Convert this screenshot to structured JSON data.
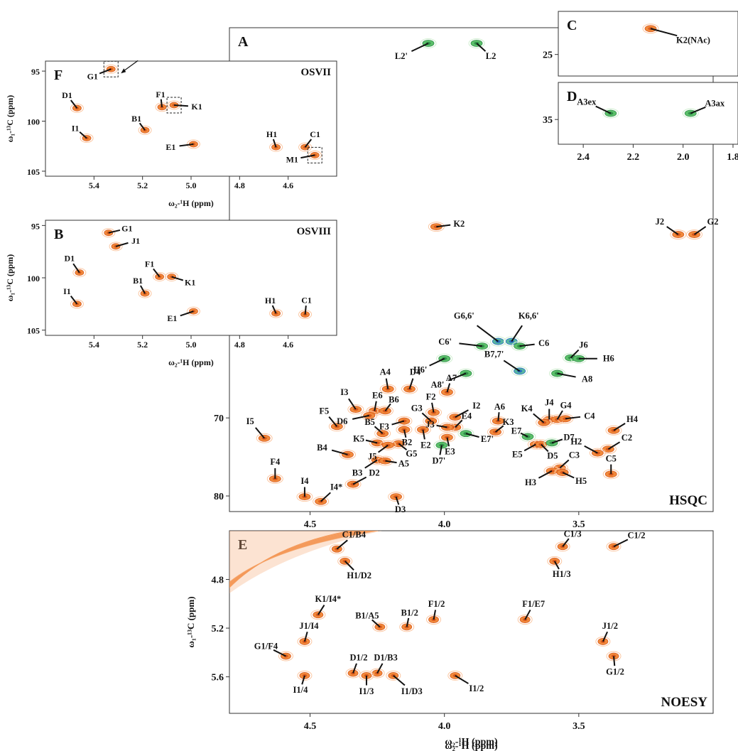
{
  "chart_data": [
    {
      "id": "A",
      "panel_letter": "A",
      "type": "scatter",
      "subtype": "2D NMR HSQC contour spectrum",
      "title": "HSQC",
      "x_axis_label": "ω₂-¹H (ppm)",
      "xlim": [
        4.8,
        3.0
      ],
      "x_ticks": [
        4.5,
        4.0,
        3.5
      ],
      "ylim": [
        20,
        82
      ],
      "y_ticks": [
        70,
        80
      ],
      "grid": false,
      "peak_colors": {
        "positive": "#f07a28",
        "negative": "#3fae5a",
        "overlap": "#2a6fc0"
      },
      "peaks": [
        {
          "label": "L2'",
          "x": 4.06,
          "y": 22.0,
          "phase": "neg"
        },
        {
          "label": "L2",
          "x": 3.88,
          "y": 22.0,
          "phase": "neg"
        },
        {
          "label": "K2",
          "x": 4.03,
          "y": 45.5,
          "phase": "pos"
        },
        {
          "label": "J2",
          "x": 3.13,
          "y": 46.5,
          "phase": "pos"
        },
        {
          "label": "G2",
          "x": 3.07,
          "y": 46.5,
          "phase": "pos"
        },
        {
          "label": "G6,6'",
          "x": 3.8,
          "y": 60.2,
          "phase": "mix"
        },
        {
          "label": "K6,6'",
          "x": 3.75,
          "y": 60.2,
          "phase": "mix"
        },
        {
          "label": "C6'",
          "x": 3.86,
          "y": 60.8,
          "phase": "neg"
        },
        {
          "label": "C6",
          "x": 3.72,
          "y": 60.8,
          "phase": "neg"
        },
        {
          "label": "J6",
          "x": 3.53,
          "y": 62.3,
          "phase": "neg"
        },
        {
          "label": "H6",
          "x": 3.5,
          "y": 62.4,
          "phase": "neg"
        },
        {
          "label": "H6'",
          "x": 4.0,
          "y": 62.4,
          "phase": "neg"
        },
        {
          "label": "B7,7'",
          "x": 3.72,
          "y": 64.0,
          "phase": "mix"
        },
        {
          "label": "A8'",
          "x": 3.92,
          "y": 64.3,
          "phase": "neg"
        },
        {
          "label": "A8",
          "x": 3.58,
          "y": 64.3,
          "phase": "neg"
        },
        {
          "label": "A4",
          "x": 4.21,
          "y": 66.3,
          "phase": "pos"
        },
        {
          "label": "D4",
          "x": 4.13,
          "y": 66.3,
          "phase": "pos"
        },
        {
          "label": "A7",
          "x": 3.99,
          "y": 66.7,
          "phase": "pos"
        },
        {
          "label": "I3",
          "x": 4.33,
          "y": 68.9,
          "phase": "pos"
        },
        {
          "label": "E6",
          "x": 4.26,
          "y": 69.1,
          "phase": "pos"
        },
        {
          "label": "B6",
          "x": 4.22,
          "y": 69.1,
          "phase": "pos"
        },
        {
          "label": "D6",
          "x": 4.28,
          "y": 69.7,
          "phase": "pos"
        },
        {
          "label": "F2",
          "x": 4.04,
          "y": 69.3,
          "phase": "pos"
        },
        {
          "label": "I2",
          "x": 3.96,
          "y": 69.9,
          "phase": "pos"
        },
        {
          "label": "F3",
          "x": 4.15,
          "y": 70.4,
          "phase": "pos"
        },
        {
          "label": "G3",
          "x": 4.05,
          "y": 70.4,
          "phase": "pos"
        },
        {
          "label": "A6",
          "x": 3.8,
          "y": 70.4,
          "phase": "pos"
        },
        {
          "label": "J4",
          "x": 3.61,
          "y": 70.2,
          "phase": "pos"
        },
        {
          "label": "G4",
          "x": 3.58,
          "y": 70.2,
          "phase": "pos"
        },
        {
          "label": "K4",
          "x": 3.63,
          "y": 70.6,
          "phase": "pos"
        },
        {
          "label": "C4",
          "x": 3.55,
          "y": 70.1,
          "phase": "pos"
        },
        {
          "label": "E4",
          "x": 3.96,
          "y": 71.2,
          "phase": "pos"
        },
        {
          "label": "J3",
          "x": 3.99,
          "y": 71.2,
          "phase": "pos"
        },
        {
          "label": "F5",
          "x": 4.4,
          "y": 71.1,
          "phase": "pos"
        },
        {
          "label": "B5",
          "x": 4.23,
          "y": 72.0,
          "phase": "pos"
        },
        {
          "label": "B2",
          "x": 4.15,
          "y": 71.5,
          "phase": "pos"
        },
        {
          "label": "E2",
          "x": 4.08,
          "y": 71.5,
          "phase": "pos"
        },
        {
          "label": "K3",
          "x": 3.81,
          "y": 71.8,
          "phase": "pos"
        },
        {
          "label": "E3",
          "x": 3.99,
          "y": 72.5,
          "phase": "pos"
        },
        {
          "label": "E7'",
          "x": 3.92,
          "y": 72.0,
          "phase": "neg"
        },
        {
          "label": "E7",
          "x": 3.69,
          "y": 72.4,
          "phase": "neg"
        },
        {
          "label": "I5",
          "x": 4.67,
          "y": 72.6,
          "phase": "pos"
        },
        {
          "label": "K5",
          "x": 4.25,
          "y": 73.2,
          "phase": "pos"
        },
        {
          "label": "G5",
          "x": 4.17,
          "y": 73.3,
          "phase": "pos"
        },
        {
          "label": "J5",
          "x": 4.21,
          "y": 73.5,
          "phase": "pos"
        },
        {
          "label": "D7'",
          "x": 4.01,
          "y": 73.5,
          "phase": "neg"
        },
        {
          "label": "E5",
          "x": 3.66,
          "y": 73.4,
          "phase": "pos"
        },
        {
          "label": "D5",
          "x": 3.64,
          "y": 73.4,
          "phase": "pos"
        },
        {
          "label": "D7",
          "x": 3.6,
          "y": 73.2,
          "phase": "neg"
        },
        {
          "label": "H4",
          "x": 3.37,
          "y": 71.6,
          "phase": "pos"
        },
        {
          "label": "C2",
          "x": 3.39,
          "y": 74.0,
          "phase": "pos"
        },
        {
          "label": "H2",
          "x": 3.43,
          "y": 74.5,
          "phase": "pos"
        },
        {
          "label": "B4",
          "x": 4.36,
          "y": 74.7,
          "phase": "pos"
        },
        {
          "label": "B3",
          "x": 4.25,
          "y": 75.4,
          "phase": "pos"
        },
        {
          "label": "A5",
          "x": 4.22,
          "y": 75.5,
          "phase": "pos"
        },
        {
          "label": "C3",
          "x": 3.57,
          "y": 76.4,
          "phase": "pos"
        },
        {
          "label": "H3",
          "x": 3.6,
          "y": 76.8,
          "phase": "pos"
        },
        {
          "label": "H5",
          "x": 3.56,
          "y": 77.0,
          "phase": "pos"
        },
        {
          "label": "C5",
          "x": 3.38,
          "y": 77.2,
          "phase": "pos"
        },
        {
          "label": "F4",
          "x": 4.63,
          "y": 77.8,
          "phase": "pos"
        },
        {
          "label": "D2",
          "x": 4.34,
          "y": 78.5,
          "phase": "pos"
        },
        {
          "label": "D3",
          "x": 4.18,
          "y": 80.1,
          "phase": "pos"
        },
        {
          "label": "I4",
          "x": 4.52,
          "y": 80.1,
          "phase": "pos"
        },
        {
          "label": "I4*",
          "x": 4.46,
          "y": 80.7,
          "phase": "pos"
        }
      ]
    },
    {
      "id": "C",
      "panel_letter": "C",
      "type": "scatter",
      "subtype": "HSQC inset",
      "xlim": [
        2.5,
        1.78
      ],
      "ylim": [
        21,
        27
      ],
      "y_ticks": [
        25
      ],
      "peaks": [
        {
          "label": "K2(NAc)",
          "x": 2.13,
          "y": 22.6,
          "phase": "pos"
        }
      ]
    },
    {
      "id": "D",
      "panel_letter": "D",
      "type": "scatter",
      "subtype": "HSQC inset",
      "xlim": [
        2.5,
        1.78
      ],
      "x_ticks": [
        2.4,
        2.2,
        2.0,
        1.8
      ],
      "ylim": [
        32,
        37
      ],
      "y_ticks": [
        35
      ],
      "peaks": [
        {
          "label": "A3ex",
          "x": 2.29,
          "y": 34.5,
          "phase": "neg"
        },
        {
          "label": "A3ax",
          "x": 1.97,
          "y": 34.5,
          "phase": "neg"
        }
      ]
    },
    {
      "id": "F",
      "panel_letter": "F",
      "type": "scatter",
      "subtype": "HSQC anomeric region",
      "title": "OSVII",
      "x_axis_label": "ω₂-¹H (ppm)",
      "y_axis_label": "ω₁-¹³C (ppm)",
      "xlim": [
        5.6,
        4.4
      ],
      "x_ticks": [
        5.4,
        5.2,
        5.0,
        4.8,
        4.6
      ],
      "ylim": [
        94,
        105.5
      ],
      "y_ticks": [
        95,
        100,
        105
      ],
      "peaks": [
        {
          "label": "G1",
          "x": 5.33,
          "y": 94.8,
          "phase": "pos",
          "boxed": true
        },
        {
          "label": "D1",
          "x": 5.47,
          "y": 98.7,
          "phase": "pos"
        },
        {
          "label": "F1",
          "x": 5.12,
          "y": 98.6,
          "phase": "pos"
        },
        {
          "label": "K1",
          "x": 5.07,
          "y": 98.4,
          "phase": "pos",
          "boxed": true
        },
        {
          "label": "B1",
          "x": 5.19,
          "y": 100.9,
          "phase": "pos"
        },
        {
          "label": "I1",
          "x": 5.43,
          "y": 101.7,
          "phase": "pos"
        },
        {
          "label": "E1",
          "x": 4.99,
          "y": 102.3,
          "phase": "pos"
        },
        {
          "label": "H1",
          "x": 4.65,
          "y": 102.6,
          "phase": "pos"
        },
        {
          "label": "C1",
          "x": 4.53,
          "y": 102.6,
          "phase": "pos"
        },
        {
          "label": "M1",
          "x": 4.49,
          "y": 103.4,
          "phase": "pos",
          "boxed": true
        }
      ]
    },
    {
      "id": "B",
      "panel_letter": "B",
      "type": "scatter",
      "subtype": "HSQC anomeric region",
      "title": "OSVIII",
      "x_axis_label": "ω₂-¹H (ppm)",
      "y_axis_label": "ω₁-¹³C (ppm)",
      "xlim": [
        5.6,
        4.4
      ],
      "x_ticks": [
        5.4,
        5.2,
        5.0,
        4.8,
        4.6
      ],
      "ylim": [
        94.5,
        105.5
      ],
      "y_ticks": [
        95,
        100,
        105
      ],
      "peaks": [
        {
          "label": "G1",
          "x": 5.34,
          "y": 95.7,
          "phase": "pos"
        },
        {
          "label": "J1",
          "x": 5.31,
          "y": 97.0,
          "phase": "pos"
        },
        {
          "label": "D1",
          "x": 5.46,
          "y": 99.5,
          "phase": "pos"
        },
        {
          "label": "F1",
          "x": 5.13,
          "y": 99.9,
          "phase": "pos"
        },
        {
          "label": "K1",
          "x": 5.08,
          "y": 99.9,
          "phase": "pos"
        },
        {
          "label": "B1",
          "x": 5.19,
          "y": 101.5,
          "phase": "pos"
        },
        {
          "label": "I1",
          "x": 5.47,
          "y": 102.5,
          "phase": "pos"
        },
        {
          "label": "E1",
          "x": 4.99,
          "y": 103.2,
          "phase": "pos"
        },
        {
          "label": "H1",
          "x": 4.65,
          "y": 103.4,
          "phase": "pos"
        },
        {
          "label": "C1",
          "x": 4.53,
          "y": 103.5,
          "phase": "pos"
        }
      ]
    },
    {
      "id": "E",
      "panel_letter": "E",
      "type": "scatter",
      "subtype": "2D NMR NOESY contour spectrum",
      "title": "NOESY",
      "x_axis_label": "ω₂-¹H (ppm)",
      "y_axis_label": "ω₁-¹³C (ppm)",
      "xlim": [
        4.8,
        3.0
      ],
      "x_ticks": [
        4.5,
        4.0,
        3.5
      ],
      "ylim": [
        4.4,
        5.9
      ],
      "y_ticks": [
        4.8,
        5.2,
        5.6
      ],
      "peaks": [
        {
          "label": "C1/B4",
          "x": 4.4,
          "y": 4.55,
          "phase": "pos"
        },
        {
          "label": "H1/D2",
          "x": 4.37,
          "y": 4.65,
          "phase": "pos"
        },
        {
          "label": "C1/3",
          "x": 3.56,
          "y": 4.53,
          "phase": "pos"
        },
        {
          "label": "C1/2",
          "x": 3.37,
          "y": 4.53,
          "phase": "pos"
        },
        {
          "label": "H1/3",
          "x": 3.59,
          "y": 4.65,
          "phase": "pos"
        },
        {
          "label": "K1/I4*",
          "x": 4.47,
          "y": 5.09,
          "phase": "pos"
        },
        {
          "label": "F1/2",
          "x": 4.04,
          "y": 5.13,
          "phase": "pos"
        },
        {
          "label": "F1/E7",
          "x": 3.7,
          "y": 5.13,
          "phase": "pos"
        },
        {
          "label": "B1/A5",
          "x": 4.24,
          "y": 5.19,
          "phase": "pos"
        },
        {
          "label": "B1/2",
          "x": 4.14,
          "y": 5.19,
          "phase": "pos"
        },
        {
          "label": "J1/I4",
          "x": 4.52,
          "y": 5.31,
          "phase": "pos"
        },
        {
          "label": "J1/2",
          "x": 3.41,
          "y": 5.31,
          "phase": "pos"
        },
        {
          "label": "G1/F4",
          "x": 4.59,
          "y": 5.43,
          "phase": "pos"
        },
        {
          "label": "G1/2",
          "x": 3.37,
          "y": 5.43,
          "phase": "pos"
        },
        {
          "label": "D1/2",
          "x": 4.34,
          "y": 5.57,
          "phase": "pos"
        },
        {
          "label": "D1/B3",
          "x": 4.25,
          "y": 5.57,
          "phase": "pos"
        },
        {
          "label": "I1/4",
          "x": 4.52,
          "y": 5.59,
          "phase": "pos"
        },
        {
          "label": "I1/3",
          "x": 4.29,
          "y": 5.59,
          "phase": "pos"
        },
        {
          "label": "I1/D3",
          "x": 4.19,
          "y": 5.59,
          "phase": "pos"
        },
        {
          "label": "I1/2",
          "x": 3.96,
          "y": 5.59,
          "phase": "pos"
        }
      ]
    }
  ]
}
